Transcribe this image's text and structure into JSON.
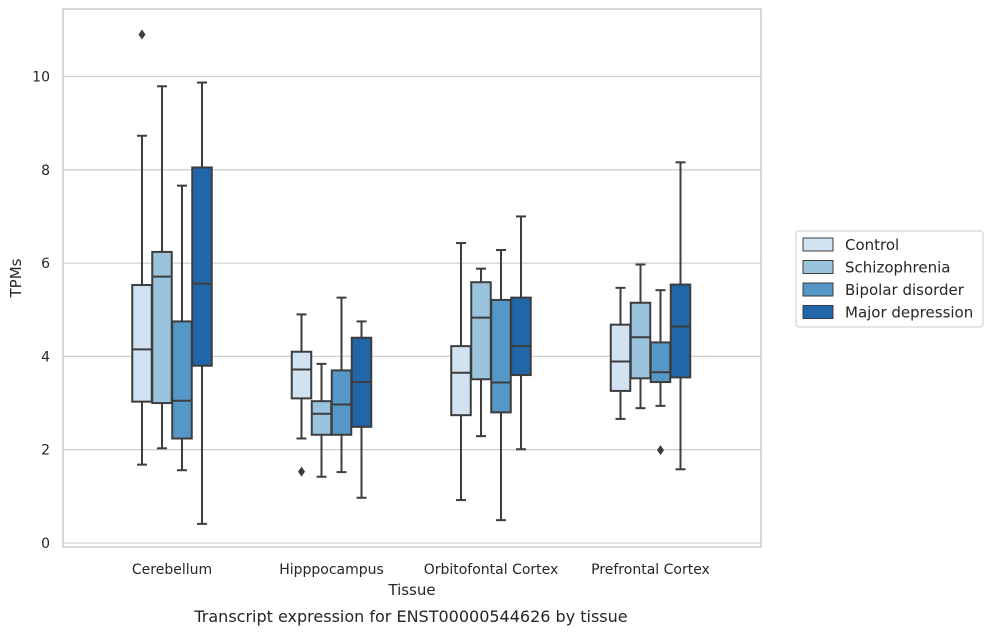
{
  "chart_data": {
    "type": "boxplot",
    "xlabel": "Tissue",
    "ylabel": "TPMs",
    "caption": "Transcript expression for ENST00000544626 by tissue",
    "ylim": [
      -0.1,
      11.4
    ],
    "yticks": [
      0,
      2,
      4,
      6,
      8,
      10
    ],
    "grid": "horizontal",
    "legend_position": "right",
    "categories": [
      "Cerebellum",
      "Hipppocampus",
      "Orbitofontal Cortex",
      "Prefrontal Cortex"
    ],
    "series": [
      {
        "name": "Control",
        "color": "#d1e2f2",
        "boxes": [
          {
            "whislo": 1.68,
            "q1": 3.03,
            "med": 4.15,
            "q3": 5.53,
            "whishi": 8.73,
            "fliers": [
              10.9
            ]
          },
          {
            "whislo": 2.24,
            "q1": 3.1,
            "med": 3.72,
            "q3": 4.1,
            "whishi": 4.9,
            "fliers": [
              1.53
            ]
          },
          {
            "whislo": 0.92,
            "q1": 2.74,
            "med": 3.65,
            "q3": 4.22,
            "whishi": 6.43,
            "fliers": []
          },
          {
            "whislo": 2.66,
            "q1": 3.26,
            "med": 3.89,
            "q3": 4.68,
            "whishi": 5.47,
            "fliers": []
          }
        ]
      },
      {
        "name": "Schizophrenia",
        "color": "#9ac4de",
        "boxes": [
          {
            "whislo": 2.03,
            "q1": 3.0,
            "med": 5.71,
            "q3": 6.24,
            "whishi": 9.79,
            "fliers": []
          },
          {
            "whislo": 1.42,
            "q1": 2.32,
            "med": 2.77,
            "q3": 3.04,
            "whishi": 3.84,
            "fliers": []
          },
          {
            "whislo": 2.29,
            "q1": 3.51,
            "med": 4.83,
            "q3": 5.59,
            "whishi": 5.88,
            "fliers": []
          },
          {
            "whislo": 2.89,
            "q1": 3.53,
            "med": 4.41,
            "q3": 5.15,
            "whishi": 5.97,
            "fliers": []
          }
        ]
      },
      {
        "name": "Bipolar disorder",
        "color": "#5598c7",
        "boxes": [
          {
            "whislo": 1.56,
            "q1": 2.24,
            "med": 3.05,
            "q3": 4.75,
            "whishi": 7.66,
            "fliers": []
          },
          {
            "whislo": 1.52,
            "q1": 2.32,
            "med": 2.97,
            "q3": 3.7,
            "whishi": 5.26,
            "fliers": []
          },
          {
            "whislo": 0.49,
            "q1": 2.8,
            "med": 3.44,
            "q3": 5.21,
            "whishi": 6.28,
            "fliers": []
          },
          {
            "whislo": 2.94,
            "q1": 3.45,
            "med": 3.66,
            "q3": 4.3,
            "whishi": 5.42,
            "fliers": [
              1.99
            ]
          }
        ]
      },
      {
        "name": "Major depression",
        "color": "#2166a8",
        "boxes": [
          {
            "whislo": 0.41,
            "q1": 3.8,
            "med": 5.56,
            "q3": 8.05,
            "whishi": 9.87,
            "fliers": []
          },
          {
            "whislo": 0.97,
            "q1": 2.49,
            "med": 3.45,
            "q3": 4.4,
            "whishi": 4.75,
            "fliers": []
          },
          {
            "whislo": 2.01,
            "q1": 3.6,
            "med": 4.22,
            "q3": 5.26,
            "whishi": 7.0,
            "fliers": []
          },
          {
            "whislo": 1.58,
            "q1": 3.55,
            "med": 4.64,
            "q3": 5.54,
            "whishi": 8.16,
            "fliers": []
          }
        ]
      }
    ]
  }
}
